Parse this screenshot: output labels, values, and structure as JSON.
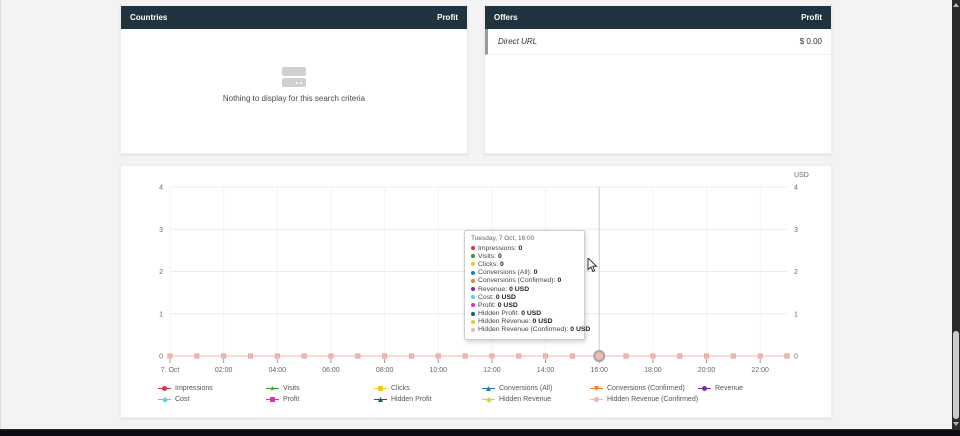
{
  "panels": {
    "countries": {
      "title": "Countries",
      "value_header": "Profit",
      "empty_text": "Nothing to display for this search criteria"
    },
    "offers": {
      "title": "Offers",
      "value_header": "Profit",
      "rows": [
        {
          "name": "Direct URL",
          "value": "$ 0.00"
        }
      ]
    }
  },
  "chart_data": {
    "type": "line",
    "title": "",
    "y_axis_unit": "USD",
    "ylim": [
      0,
      4
    ],
    "yticks": [
      0,
      1,
      2,
      3,
      4
    ],
    "x_tick_labels": [
      "7. Oct",
      "02:00",
      "04:00",
      "06:00",
      "08:00",
      "10:00",
      "12:00",
      "14:00",
      "16:00",
      "18:00",
      "20:00",
      "22:00"
    ],
    "points_per_day": 24,
    "grid": true,
    "legend_position": "bottom",
    "hover_index": 16,
    "series": [
      {
        "name": "Impressions",
        "color": "#d63649",
        "marker": "circle",
        "values": [
          0,
          0,
          0,
          0,
          0,
          0,
          0,
          0,
          0,
          0,
          0,
          0,
          0,
          0,
          0,
          0,
          0,
          0,
          0,
          0,
          0,
          0,
          0,
          0
        ]
      },
      {
        "name": "Visits",
        "color": "#33a02c",
        "marker": "star",
        "values": [
          0,
          0,
          0,
          0,
          0,
          0,
          0,
          0,
          0,
          0,
          0,
          0,
          0,
          0,
          0,
          0,
          0,
          0,
          0,
          0,
          0,
          0,
          0,
          0
        ]
      },
      {
        "name": "Clicks",
        "color": "#f0c52e",
        "marker": "square",
        "values": [
          0,
          0,
          0,
          0,
          0,
          0,
          0,
          0,
          0,
          0,
          0,
          0,
          0,
          0,
          0,
          0,
          0,
          0,
          0,
          0,
          0,
          0,
          0,
          0
        ]
      },
      {
        "name": "Conversions (All)",
        "color": "#2e79b5",
        "marker": "triangle-up",
        "values": [
          0,
          0,
          0,
          0,
          0,
          0,
          0,
          0,
          0,
          0,
          0,
          0,
          0,
          0,
          0,
          0,
          0,
          0,
          0,
          0,
          0,
          0,
          0,
          0
        ]
      },
      {
        "name": "Conversions (Confirmed)",
        "color": "#ee7f2f",
        "marker": "triangle-down",
        "values": [
          0,
          0,
          0,
          0,
          0,
          0,
          0,
          0,
          0,
          0,
          0,
          0,
          0,
          0,
          0,
          0,
          0,
          0,
          0,
          0,
          0,
          0,
          0,
          0
        ]
      },
      {
        "name": "Revenue",
        "color": "#7c2d9c",
        "marker": "circle",
        "values": [
          0,
          0,
          0,
          0,
          0,
          0,
          0,
          0,
          0,
          0,
          0,
          0,
          0,
          0,
          0,
          0,
          0,
          0,
          0,
          0,
          0,
          0,
          0,
          0
        ]
      },
      {
        "name": "Cost",
        "color": "#4fd4ef",
        "marker": "diamond",
        "values": [
          0,
          0,
          0,
          0,
          0,
          0,
          0,
          0,
          0,
          0,
          0,
          0,
          0,
          0,
          0,
          0,
          0,
          0,
          0,
          0,
          0,
          0,
          0,
          0
        ]
      },
      {
        "name": "Profit",
        "color": "#e629c0",
        "marker": "square",
        "values": [
          0,
          0,
          0,
          0,
          0,
          0,
          0,
          0,
          0,
          0,
          0,
          0,
          0,
          0,
          0,
          0,
          0,
          0,
          0,
          0,
          0,
          0,
          0,
          0
        ]
      },
      {
        "name": "Hidden Profit",
        "color": "#0d6475",
        "marker": "triangle-up",
        "values": [
          0,
          0,
          0,
          0,
          0,
          0,
          0,
          0,
          0,
          0,
          0,
          0,
          0,
          0,
          0,
          0,
          0,
          0,
          0,
          0,
          0,
          0,
          0,
          0
        ]
      },
      {
        "name": "Hidden Revenue",
        "color": "#c8da2f",
        "marker": "diamond",
        "values": [
          0,
          0,
          0,
          0,
          0,
          0,
          0,
          0,
          0,
          0,
          0,
          0,
          0,
          0,
          0,
          0,
          0,
          0,
          0,
          0,
          0,
          0,
          0,
          0
        ]
      },
      {
        "name": "Hidden Revenue (Confirmed)",
        "color": "#f2b4ac",
        "marker": "circle",
        "values": [
          0,
          0,
          0,
          0,
          0,
          0,
          0,
          0,
          0,
          0,
          0,
          0,
          0,
          0,
          0,
          0,
          0,
          0,
          0,
          0,
          0,
          0,
          0,
          0
        ]
      }
    ]
  },
  "tooltip": {
    "title": "Tuesday, 7 Oct, 16:00",
    "rows": [
      {
        "label": "Impressions",
        "value": "0",
        "color": "#d63649"
      },
      {
        "label": "Visits",
        "value": "0",
        "color": "#33a02c"
      },
      {
        "label": "Clicks",
        "value": "0",
        "color": "#f0c52e"
      },
      {
        "label": "Conversions (All)",
        "value": "0",
        "color": "#2e79b5"
      },
      {
        "label": "Conversions (Confirmed)",
        "value": "0",
        "color": "#ee7f2f"
      },
      {
        "label": "Revenue",
        "value": "0 USD",
        "color": "#7c2d9c"
      },
      {
        "label": "Cost",
        "value": "0 USD",
        "color": "#4fd4ef"
      },
      {
        "label": "Profit",
        "value": "0 USD",
        "color": "#e629c0"
      },
      {
        "label": "Hidden Profit",
        "value": "0 USD",
        "color": "#0d6475"
      },
      {
        "label": "Hidden Revenue",
        "value": "0 USD",
        "color": "#c8da2f"
      },
      {
        "label": "Hidden Revenue (Confirmed)",
        "value": "0 USD",
        "color": "#f2b4ac"
      }
    ]
  },
  "colors": {
    "header_bg": "#223340",
    "line_top": "#f2b4ac",
    "marker_fill": "#f3b7af",
    "marker_stroke": "#e2a199"
  }
}
